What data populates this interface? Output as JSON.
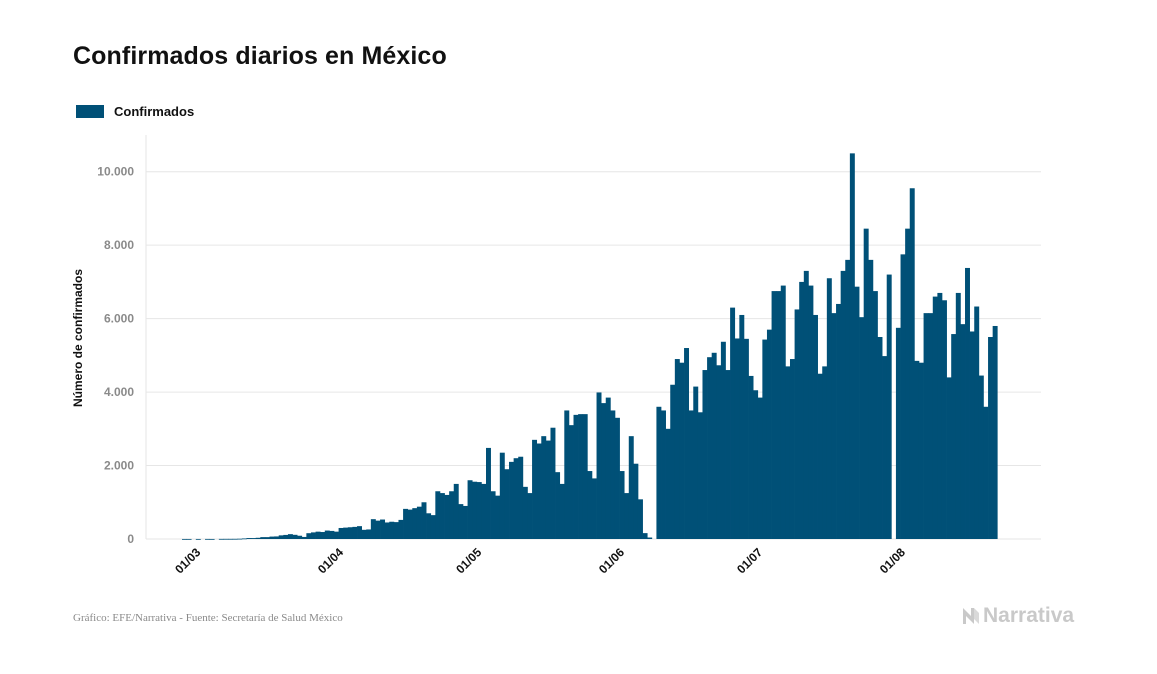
{
  "title": "Confirmados diarios en México",
  "footer": {
    "source": "Gráfico: EFE/Narrativa - Fuente: Secretaría de Salud México"
  },
  "brand": {
    "name": "Narrativa",
    "logo_icon": "n-logo-icon"
  },
  "colors": {
    "bar": "#005077",
    "grid": "#e6e6e6",
    "tick": "#8a8a8a",
    "text": "#111111"
  },
  "chart_data": {
    "type": "bar",
    "ylabel": "Número de confirmados",
    "ylim": [
      0,
      11000
    ],
    "yticks": [
      0,
      2000,
      4000,
      6000,
      8000,
      10000
    ],
    "ytick_labels": [
      "0",
      "2.000",
      "4.000",
      "6.000",
      "8.000",
      "10.000"
    ],
    "xtick_labels": [
      "01/03",
      "01/04",
      "01/05",
      "01/06",
      "01/07",
      "01/08"
    ],
    "xtick_day_index": [
      0,
      31,
      61,
      92,
      122,
      153
    ],
    "grid": true,
    "legend": {
      "position": "top-left",
      "entries": [
        "Confirmados"
      ]
    },
    "series": [
      {
        "name": "Confirmados",
        "start_date": "2020-02-28",
        "values": [
          1,
          1,
          0,
          1,
          0,
          2,
          1,
          0,
          3,
          4,
          4,
          5,
          8,
          15,
          26,
          25,
          33,
          51,
          51,
          66,
          70,
          99,
          111,
          132,
          114,
          89,
          56,
          158,
          180,
          200,
          190,
          230,
          220,
          200,
          300,
          310,
          320,
          330,
          350,
          250,
          260,
          540,
          500,
          530,
          450,
          470,
          460,
          520,
          820,
          800,
          840,
          880,
          1000,
          700,
          650,
          1300,
          1250,
          1200,
          1300,
          1500,
          950,
          900,
          1600,
          1560,
          1550,
          1500,
          2480,
          1300,
          1180,
          2350,
          1900,
          2100,
          2200,
          2240,
          1420,
          1250,
          2700,
          2600,
          2800,
          2680,
          3030,
          1820,
          1500,
          3500,
          3100,
          3380,
          3400,
          3400,
          1850,
          1650,
          3990,
          3700,
          3850,
          3500,
          3300,
          1850,
          1250,
          2800,
          2050,
          1080,
          160,
          40,
          0,
          3600,
          3500,
          3000,
          4200,
          4900,
          4800,
          5200,
          3500,
          4150,
          3450,
          4600,
          4950,
          5070,
          4730,
          5370,
          4600,
          6300,
          5460,
          6100,
          5450,
          4440,
          4050,
          3850,
          5430,
          5700,
          6750,
          6750,
          6900,
          4700,
          4900,
          6250,
          7000,
          7300,
          6900,
          6100,
          4500,
          4700,
          7100,
          6150,
          6400,
          7300,
          7600,
          10500,
          6870,
          6040,
          8450,
          7600,
          6750,
          5500,
          4980,
          7200,
          0,
          5750,
          7750,
          8450,
          9550,
          4850,
          4800,
          6150,
          6150,
          6600,
          6700,
          6500,
          4400,
          5580,
          6700,
          5850,
          7380,
          5650,
          6330,
          4450,
          3600,
          5500,
          5800
        ]
      }
    ]
  }
}
